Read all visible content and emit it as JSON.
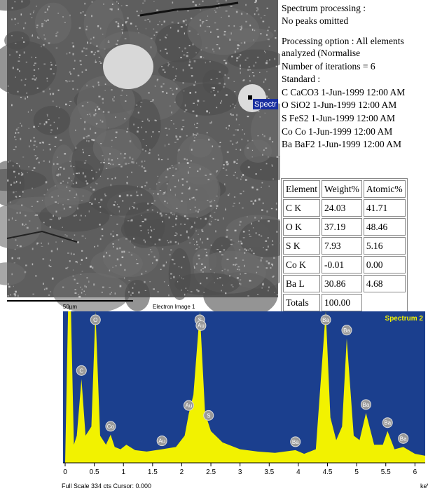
{
  "image": {
    "marker_label": "Spectr",
    "scale_label": "50µm",
    "caption": "Electron Image 1"
  },
  "processing": {
    "lines": [
      "Spectrum processing :",
      "No peaks omitted",
      "Processing option : All elements",
      "analyzed  (Normalise",
      "Number of iterations = 6",
      "Standard :",
      "C CaCO3 1-Jun-1999 12:00 AM",
      "O SiO2 1-Jun-1999 12:00 AM",
      "S FeS2 1-Jun-1999 12:00 AM",
      "Co Co 1-Jun-1999 12:00 AM",
      "Ba BaF2 1-Jun-1999 12:00 AM"
    ]
  },
  "table": {
    "header": [
      "Element",
      "Weight%",
      "Atomic%"
    ],
    "rows": [
      [
        "C K",
        "24.03",
        "41.71"
      ],
      [
        "O K",
        "37.19",
        "48.46"
      ],
      [
        "S K",
        "7.93",
        "5.16"
      ],
      [
        "Co K",
        "-0.01",
        "0.00"
      ],
      [
        "Ba L",
        "30.86",
        "4.68"
      ]
    ],
    "totals": [
      "Totals",
      "100.00"
    ]
  },
  "chart_data": {
    "type": "area",
    "title": "Spectrum 2",
    "xlabel": "keV",
    "footer": "Full Scale 334 cts Cursor: 0.000",
    "x": [
      0,
      0.05,
      0.1,
      0.15,
      0.2,
      0.28,
      0.35,
      0.45,
      0.52,
      0.6,
      0.7,
      0.78,
      0.85,
      0.95,
      1.05,
      1.2,
      1.4,
      1.66,
      1.9,
      2.05,
      2.12,
      2.2,
      2.31,
      2.4,
      2.5,
      2.7,
      3.0,
      3.3,
      3.6,
      3.95,
      4.1,
      4.3,
      4.47,
      4.55,
      4.65,
      4.75,
      4.83,
      4.95,
      5.05,
      5.16,
      5.3,
      5.45,
      5.53,
      5.65,
      5.8,
      6.0,
      6.2
    ],
    "series": [
      {
        "name": "Spectrum 2",
        "color": "#f2f200",
        "values": [
          0,
          334,
          334,
          40,
          60,
          185,
          60,
          80,
          334,
          60,
          40,
          62,
          35,
          30,
          40,
          28,
          25,
          30,
          35,
          60,
          108,
          150,
          334,
          110,
          70,
          45,
          30,
          25,
          22,
          28,
          20,
          30,
          334,
          100,
          50,
          80,
          274,
          60,
          50,
          110,
          40,
          40,
          70,
          30,
          35,
          20,
          15
        ]
      }
    ],
    "xlim": [
      0,
      6.2
    ],
    "ylim": [
      0,
      334
    ],
    "xticks": [
      0,
      0.5,
      1,
      1.5,
      2,
      2.5,
      3,
      3.5,
      4,
      4.5,
      5,
      5.5,
      6
    ],
    "annotations": [
      {
        "text": "C",
        "x": 0.28
      },
      {
        "text": "O",
        "x": 0.52
      },
      {
        "text": "Co",
        "x": 0.78
      },
      {
        "text": "Au",
        "x": 1.66
      },
      {
        "text": "Au",
        "x": 2.12
      },
      {
        "text": "S",
        "x": 2.31
      },
      {
        "text": "Au",
        "x": 2.33
      },
      {
        "text": "S",
        "x": 2.46
      },
      {
        "text": "Ba",
        "x": 3.95
      },
      {
        "text": "Ba",
        "x": 4.47
      },
      {
        "text": "Ba",
        "x": 4.83
      },
      {
        "text": "Ba",
        "x": 5.16
      },
      {
        "text": "Ba",
        "x": 5.53
      },
      {
        "text": "Ba",
        "x": 5.8
      }
    ]
  }
}
